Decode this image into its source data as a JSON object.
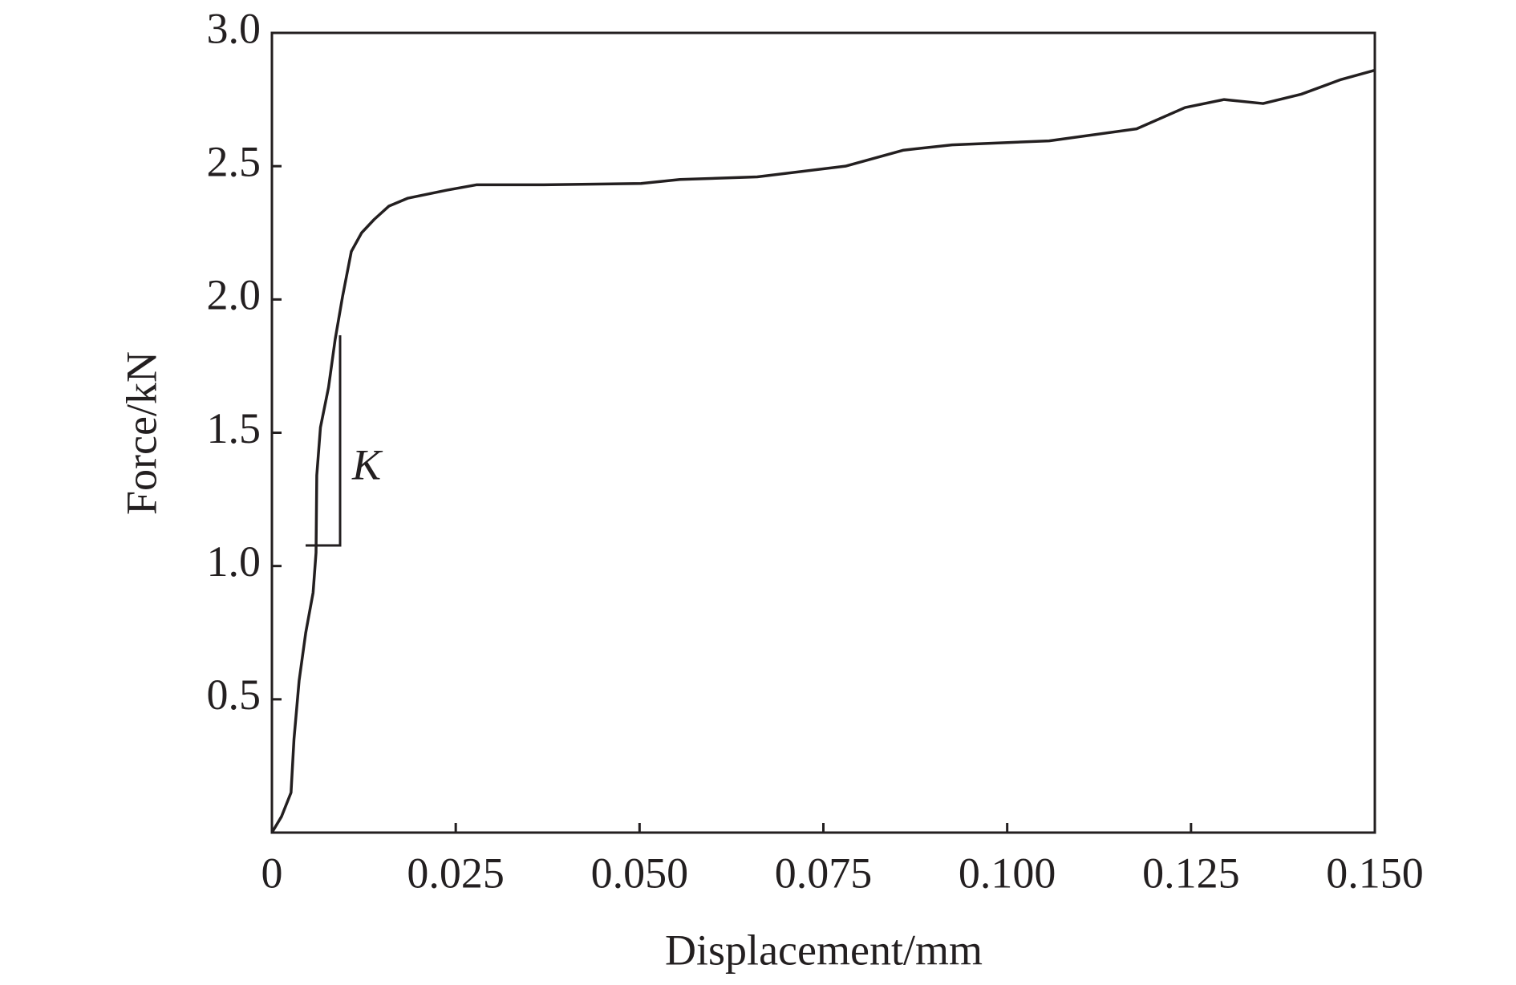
{
  "chart_data": {
    "type": "line",
    "x_label": "Displacement/mm",
    "y_label": "Force/kN",
    "annotation": "K",
    "x": [
      0,
      0.0013,
      0.0026,
      0.003,
      0.0037,
      0.0046,
      0.0056,
      0.006,
      0.0061,
      0.0066,
      0.0077,
      0.0086,
      0.0096,
      0.0108,
      0.0122,
      0.0139,
      0.0159,
      0.0185,
      0.0238,
      0.0278,
      0.037,
      0.0502,
      0.0555,
      0.066,
      0.078,
      0.0859,
      0.0925,
      0.1057,
      0.1176,
      0.1242,
      0.1295,
      0.1348,
      0.14,
      0.1454,
      0.15
    ],
    "series": [
      {
        "color": "#231f20",
        "values": [
          0,
          0.06,
          0.15,
          0.35,
          0.57,
          0.75,
          0.9,
          1.05,
          1.34,
          1.52,
          1.67,
          1.85,
          2.01,
          2.18,
          2.25,
          2.3,
          2.35,
          2.38,
          2.41,
          2.43,
          2.43,
          2.435,
          2.45,
          2.46,
          2.5,
          2.56,
          2.58,
          2.595,
          2.64,
          2.72,
          2.75,
          2.735,
          2.77,
          2.825,
          2.86
        ]
      }
    ],
    "xlim": [
      0,
      0.15
    ],
    "xticks": [
      0,
      0.025,
      {
        "value": 0.05,
        "label": "0.050"
      },
      0.075,
      {
        "value": 0.1,
        "label": "0.100"
      },
      0.125,
      {
        "value": 0.15,
        "label": "0.150"
      }
    ],
    "ylim": [
      0,
      3
    ],
    "yticks": [
      0.5,
      {
        "value": 1,
        "label": "1.0"
      },
      1.5,
      {
        "value": 2,
        "label": "2.0"
      },
      2.5,
      {
        "value": 3,
        "label": "3.0"
      }
    ],
    "grid": false
  }
}
